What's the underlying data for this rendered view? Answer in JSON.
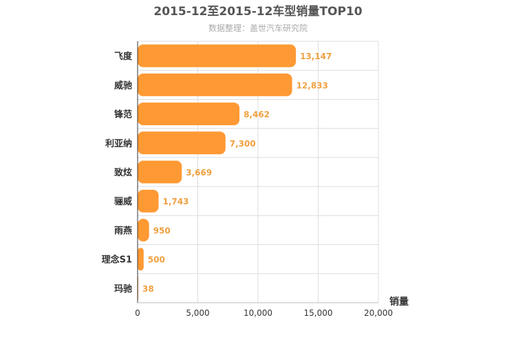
{
  "chart_data": {
    "type": "bar",
    "orientation": "horizontal",
    "title": "2015-12至2015-12车型销量TOP10",
    "subtitle": "数据整理：盖世汽车研究院",
    "xlabel": "销量",
    "ylabel": "",
    "xlim": [
      0,
      20000
    ],
    "x_ticks": [
      0,
      5000,
      10000,
      15000,
      20000
    ],
    "x_tick_labels": [
      "0",
      "5,000",
      "10,000",
      "15,000",
      "20,000"
    ],
    "categories": [
      "飞度",
      "威驰",
      "锋范",
      "利亚纳",
      "致炫",
      "骊威",
      "雨燕",
      "理念S1",
      "玛驰"
    ],
    "values": [
      13147,
      12833,
      8462,
      7300,
      3669,
      1743,
      950,
      500,
      38
    ],
    "value_labels": [
      "13,147",
      "12,833",
      "8,462",
      "7,300",
      "3,669",
      "1,743",
      "950",
      "500",
      "38"
    ],
    "grid": true,
    "colors": {
      "bar": "#ff9933",
      "label": "#f0a040",
      "title": "#555555",
      "subtitle": "#aaaaaa",
      "grid": "#dddddd",
      "axis": "#333333"
    }
  }
}
